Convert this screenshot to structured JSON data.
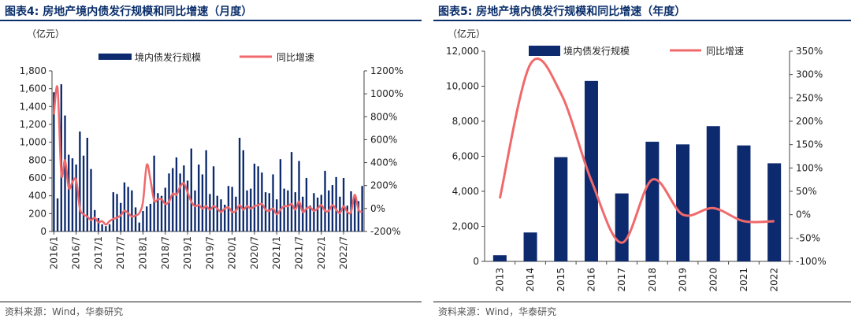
{
  "left": {
    "title": "图表4:  房地产境内债发行规模和同比增速（月度）",
    "unit": "（亿元）",
    "source": "资料来源：Wind，华泰研究",
    "chart_data": {
      "type": "bar+line",
      "legend": [
        "境内债发行规模",
        "同比增速"
      ],
      "colors": {
        "bar": "#0d2a6e",
        "line": "#f0696b"
      },
      "y_left": {
        "min": 0,
        "max": 1800,
        "ticks": [
          "0",
          "200",
          "400",
          "600",
          "800",
          "1,000",
          "1,200",
          "1,400",
          "1,600",
          "1,800"
        ]
      },
      "y_right": {
        "min": -200,
        "max": 1200,
        "ticks": [
          "-200%",
          "0%",
          "200%",
          "400%",
          "600%",
          "800%",
          "1000%",
          "1200%"
        ]
      },
      "x_tick_labels": [
        "2016/1",
        "2016/7",
        "2017/1",
        "2017/7",
        "2018/1",
        "2018/7",
        "2019/1",
        "2019/7",
        "2020/1",
        "2020/7",
        "2021/1",
        "2021/7",
        "2022/1",
        "2022/7"
      ],
      "x_tick_indices": [
        0,
        6,
        12,
        18,
        24,
        30,
        36,
        42,
        48,
        54,
        60,
        66,
        72,
        78
      ],
      "bars": [
        1560,
        370,
        1650,
        1300,
        860,
        820,
        750,
        1120,
        850,
        1050,
        700,
        240,
        150,
        80,
        60,
        80,
        440,
        420,
        320,
        550,
        500,
        460,
        270,
        100,
        230,
        280,
        310,
        850,
        430,
        400,
        490,
        650,
        710,
        830,
        650,
        740,
        570,
        930,
        460,
        750,
        640,
        910,
        420,
        730,
        400,
        360,
        300,
        510,
        500,
        390,
        1050,
        910,
        460,
        480,
        760,
        730,
        660,
        440,
        430,
        640,
        360,
        810,
        480,
        460,
        890,
        440,
        790,
        390,
        600,
        290,
        430,
        380,
        410,
        680,
        460,
        520,
        610,
        390,
        600,
        290,
        450,
        400,
        340,
        510
      ],
      "growth": [
        820,
        1050,
        300,
        420,
        180,
        230,
        250,
        0,
        -50,
        -70,
        -100,
        -80,
        -120,
        -110,
        -140,
        -110,
        -90,
        -80,
        -60,
        -20,
        -40,
        -70,
        -60,
        -40,
        60,
        380,
        250,
        70,
        80,
        80,
        40,
        60,
        130,
        120,
        190,
        220,
        140,
        60,
        20,
        30,
        0,
        20,
        -10,
        20,
        0,
        -30,
        0,
        10,
        -30,
        -20,
        30,
        -10,
        20,
        0,
        20,
        30,
        40,
        -10,
        -20,
        0,
        -50,
        -10,
        20,
        20,
        40,
        -10,
        60,
        -30,
        0,
        10,
        -20,
        0,
        30,
        -20,
        -20,
        30,
        -10,
        -40,
        20,
        -30,
        -30,
        120,
        -10,
        -30
      ]
    }
  },
  "right": {
    "title": "图表5:  房地产境内债发行规模和同比增速（年度）",
    "unit": "（亿元）",
    "source": "资料来源：Wind，华泰研究",
    "chart_data": {
      "type": "bar+line",
      "legend": [
        "境内债发行规模",
        "同比增速"
      ],
      "colors": {
        "bar": "#0d2a6e",
        "line": "#f0696b"
      },
      "categories": [
        "2013",
        "2014",
        "2015",
        "2016",
        "2017",
        "2018",
        "2019",
        "2020",
        "2021",
        "2022"
      ],
      "values": [
        350,
        1650,
        5950,
        10300,
        3880,
        6830,
        6680,
        7720,
        6620,
        5600
      ],
      "growth": [
        35,
        322,
        260,
        73,
        -60,
        75,
        0,
        14,
        -14,
        -14
      ],
      "y_left": {
        "min": 0,
        "max": 12000,
        "ticks": [
          "0",
          "2,000",
          "4,000",
          "6,000",
          "8,000",
          "10,000",
          "12,000"
        ]
      },
      "y_right": {
        "min": -100,
        "max": 350,
        "ticks": [
          "-100%",
          "-50%",
          "0%",
          "50%",
          "100%",
          "150%",
          "200%",
          "250%",
          "300%",
          "350%"
        ]
      }
    }
  }
}
